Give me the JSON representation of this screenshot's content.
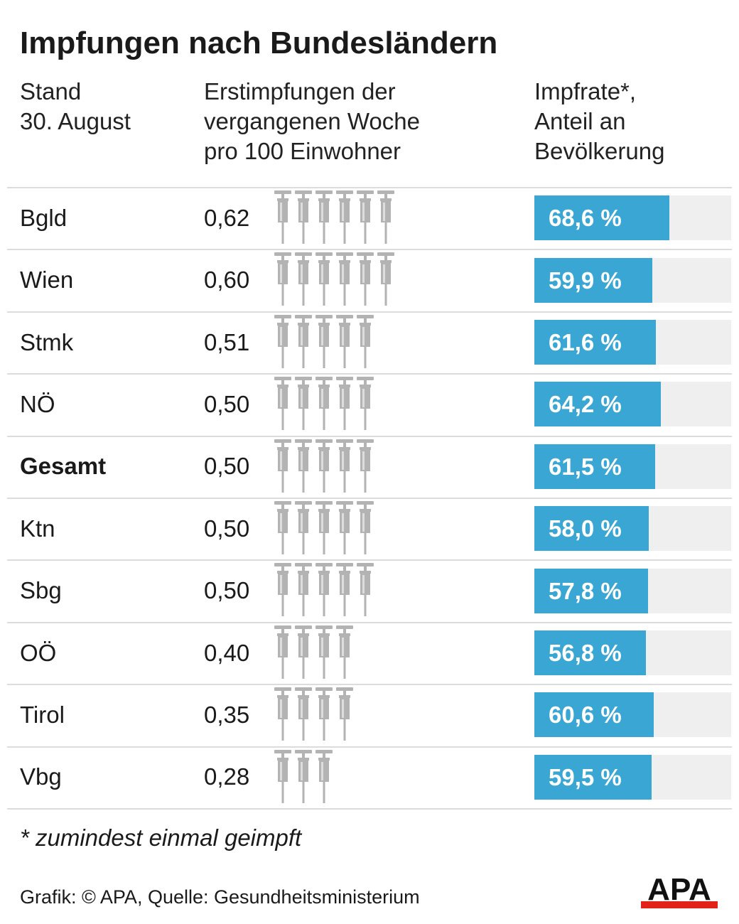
{
  "title": "Impfungen nach Bundesländern",
  "headers": {
    "col1": "Stand\n30. August",
    "col2": "Erstimpfungen der\nvergangenen Woche\npro 100 Einwohner",
    "col3": "Impfrate*,\nAnteil an\nBevölkerung"
  },
  "colors": {
    "bar": "#3aa6d4",
    "track": "#efefef",
    "icon": "#b3b3b3",
    "logo_red": "#e2231a"
  },
  "chart_data": {
    "type": "table",
    "rows": [
      {
        "label": "Bgld",
        "bold": false,
        "weekly_rate": "0,62",
        "weekly_value": 0.62,
        "icons": 6,
        "vacc_rate": "68,6 %",
        "vacc_value": 68.6
      },
      {
        "label": "Wien",
        "bold": false,
        "weekly_rate": "0,60",
        "weekly_value": 0.6,
        "icons": 6,
        "vacc_rate": "59,9 %",
        "vacc_value": 59.9
      },
      {
        "label": "Stmk",
        "bold": false,
        "weekly_rate": "0,51",
        "weekly_value": 0.51,
        "icons": 5,
        "vacc_rate": "61,6 %",
        "vacc_value": 61.6
      },
      {
        "label": "NÖ",
        "bold": false,
        "weekly_rate": "0,50",
        "weekly_value": 0.5,
        "icons": 5,
        "vacc_rate": "64,2 %",
        "vacc_value": 64.2
      },
      {
        "label": "Gesamt",
        "bold": true,
        "weekly_rate": "0,50",
        "weekly_value": 0.5,
        "icons": 5,
        "vacc_rate": "61,5 %",
        "vacc_value": 61.5
      },
      {
        "label": "Ktn",
        "bold": false,
        "weekly_rate": "0,50",
        "weekly_value": 0.5,
        "icons": 5,
        "vacc_rate": "58,0 %",
        "vacc_value": 58.0
      },
      {
        "label": "Sbg",
        "bold": false,
        "weekly_rate": "0,50",
        "weekly_value": 0.5,
        "icons": 5,
        "vacc_rate": "57,8 %",
        "vacc_value": 57.8
      },
      {
        "label": "OÖ",
        "bold": false,
        "weekly_rate": "0,40",
        "weekly_value": 0.4,
        "icons": 4,
        "vacc_rate": "56,8 %",
        "vacc_value": 56.8
      },
      {
        "label": "Tirol",
        "bold": false,
        "weekly_rate": "0,35",
        "weekly_value": 0.35,
        "icons": 4,
        "vacc_rate": "60,6 %",
        "vacc_value": 60.6
      },
      {
        "label": "Vbg",
        "bold": false,
        "weekly_rate": "0,28",
        "weekly_value": 0.28,
        "icons": 3,
        "vacc_rate": "59,5 %",
        "vacc_value": 59.5
      }
    ],
    "icon": "syringe-icon",
    "bar_max": 100
  },
  "footnote": "* zumindest einmal geimpft",
  "source": "Grafik: © APA, Quelle: Gesundheitsministerium",
  "logo": {
    "text": "APA",
    "icon": "apa-logo"
  }
}
